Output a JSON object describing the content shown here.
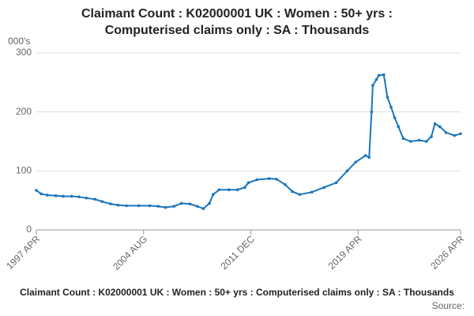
{
  "chart_data": {
    "type": "line",
    "title": [
      "Claimant Count : K02000001 UK : Women : 50+ yrs :",
      "Computerised claims only : SA : Thousands"
    ],
    "y_label": "000's",
    "caption": "Claimant Count : K02000001 UK : Women : 50+ yrs : Computerised claims only : SA : Thousands",
    "source": "Source:",
    "x": [
      "1997 APR",
      "1997 AUG",
      "1998 JAN",
      "1998 AUG",
      "1999 FEB",
      "1999 SEP",
      "2000 MAR",
      "2000 SEP",
      "2001 APR",
      "2001 OCT",
      "2002 MAY",
      "2002 NOV",
      "2003 JUN",
      "2004 APR",
      "2005 JAN",
      "2005 AUG",
      "2006 FEB",
      "2006 SEP",
      "2007 MAR",
      "2007 OCT",
      "2008 APR",
      "2008 SEP",
      "2009 FEB",
      "2009 MAY",
      "2009 OCT",
      "2010 JUN",
      "2011 JAN",
      "2011 JUL",
      "2011 OCT",
      "2012 MAY",
      "2013 MAR",
      "2013 SEP",
      "2014 APR",
      "2014 OCT",
      "2015 APR",
      "2016 FEB",
      "2016 DEC",
      "2017 OCT",
      "2018 JUL",
      "2019 FEB",
      "2019 OCT",
      "2020 JAN",
      "2020 MAR",
      "2020 APR",
      "2020 JUL",
      "2020 SEP",
      "2021 JAN",
      "2021 APR",
      "2021 JUL",
      "2021 OCT",
      "2022 JAN",
      "2022 MAY",
      "2022 NOV",
      "2023 JUN",
      "2023 DEC",
      "2024 APR",
      "2024 JUL",
      "2024 NOV",
      "2025 APR",
      "2025 NOV",
      "2026 APR"
    ],
    "series": [
      {
        "color": "#1a75bc",
        "values": [
          67,
          61,
          59,
          58,
          57,
          57,
          56,
          54,
          52,
          48,
          44,
          42,
          41,
          41,
          41,
          40,
          38,
          40,
          45,
          44,
          40,
          36,
          45,
          60,
          68,
          68,
          68,
          72,
          80,
          85,
          87,
          86,
          77,
          65,
          60,
          64,
          72,
          80,
          100,
          115,
          126,
          123,
          200,
          245,
          255,
          262,
          263,
          225,
          208,
          190,
          175,
          155,
          150,
          152,
          150,
          158,
          180,
          175,
          165,
          160,
          163
        ]
      }
    ],
    "ylim": [
      0,
      300
    ],
    "yticks": [
      0,
      100,
      200,
      300
    ],
    "xticks": [
      "1997 APR",
      "2004 AUG",
      "2011 DEC",
      "2019 APR",
      "2026 APR"
    ],
    "grid": true
  }
}
